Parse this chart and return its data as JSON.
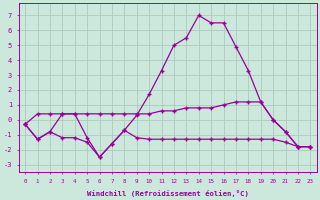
{
  "xlabel": "Windchill (Refroidissement éolien,°C)",
  "bg_color": "#cce8dd",
  "grid_color": "#aaccbb",
  "line_color": "#990099",
  "xlim": [
    -0.5,
    23.5
  ],
  "ylim": [
    -3.5,
    7.8
  ],
  "yticks": [
    -3,
    -2,
    -1,
    0,
    1,
    2,
    3,
    4,
    5,
    6,
    7
  ],
  "xticks": [
    0,
    1,
    2,
    3,
    4,
    5,
    6,
    7,
    8,
    9,
    10,
    11,
    12,
    13,
    14,
    15,
    16,
    17,
    18,
    19,
    20,
    21,
    22,
    23
  ],
  "line1_x": [
    0,
    1,
    2,
    3,
    4,
    5,
    6,
    7,
    8,
    9,
    10,
    11,
    12,
    13,
    14,
    15,
    16,
    17,
    18,
    19,
    20,
    21,
    22,
    23
  ],
  "line1_y": [
    -0.3,
    -1.3,
    -0.8,
    0.4,
    0.4,
    -1.2,
    -2.5,
    -1.6,
    -0.7,
    0.3,
    1.7,
    3.3,
    5.0,
    5.5,
    7.0,
    6.5,
    6.5,
    4.9,
    3.3,
    1.2,
    0.0,
    -0.8,
    -1.8,
    -1.8
  ],
  "line2_x": [
    0,
    1,
    2,
    3,
    4,
    5,
    6,
    7,
    8,
    9,
    10,
    11,
    12,
    13,
    14,
    15,
    16,
    17,
    18,
    19,
    20,
    21,
    22,
    23
  ],
  "line2_y": [
    -0.3,
    0.4,
    0.4,
    0.4,
    0.4,
    0.4,
    0.4,
    0.4,
    0.4,
    0.4,
    0.4,
    0.6,
    0.6,
    0.8,
    0.8,
    0.8,
    1.0,
    1.2,
    1.2,
    1.2,
    0.0,
    -0.8,
    -1.8,
    -1.8
  ],
  "line3_x": [
    0,
    1,
    2,
    3,
    4,
    5,
    6,
    7,
    8,
    9,
    10,
    11,
    12,
    13,
    14,
    15,
    16,
    17,
    18,
    19,
    20,
    21,
    22,
    23
  ],
  "line3_y": [
    -0.3,
    -1.3,
    -0.8,
    -1.2,
    -1.2,
    -1.5,
    -2.5,
    -1.6,
    -0.7,
    -1.2,
    -1.3,
    -1.3,
    -1.3,
    -1.3,
    -1.3,
    -1.3,
    -1.3,
    -1.3,
    -1.3,
    -1.3,
    -1.3,
    -1.5,
    -1.8,
    -1.8
  ]
}
